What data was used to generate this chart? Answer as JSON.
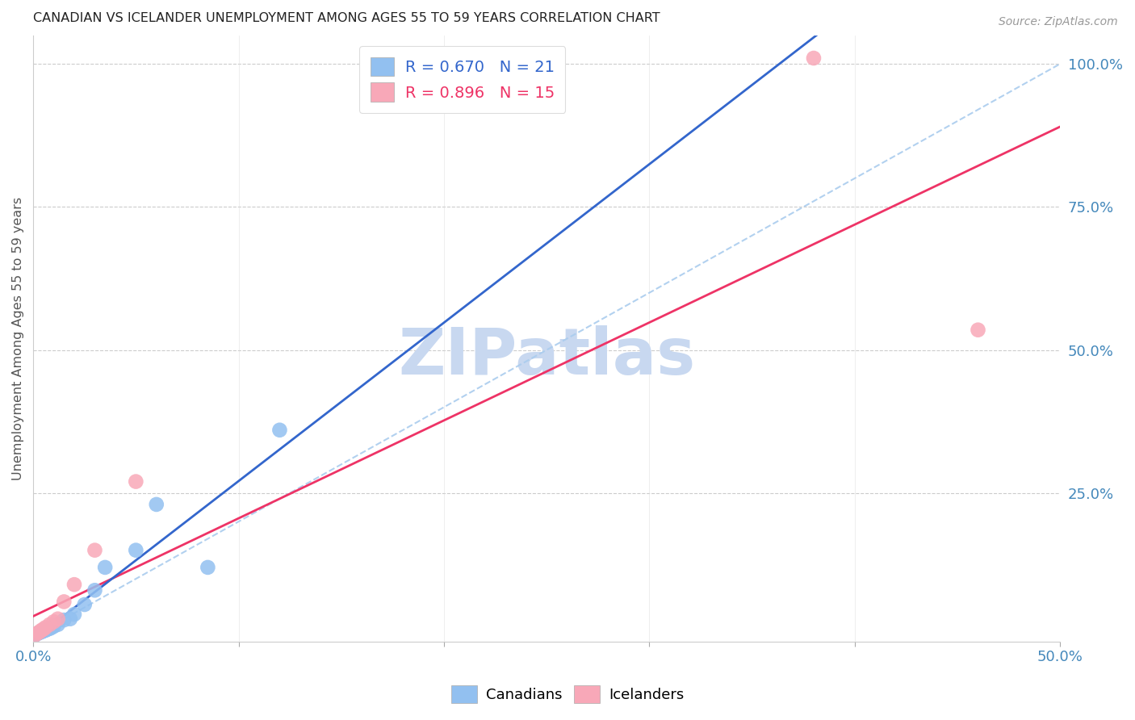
{
  "title": "CANADIAN VS ICELANDER UNEMPLOYMENT AMONG AGES 55 TO 59 YEARS CORRELATION CHART",
  "source": "Source: ZipAtlas.com",
  "ylabel": "Unemployment Among Ages 55 to 59 years",
  "xlim": [
    0.0,
    0.5
  ],
  "ylim": [
    -0.01,
    1.05
  ],
  "r_canadian": 0.67,
  "n_canadian": 21,
  "r_icelander": 0.896,
  "n_icelander": 15,
  "canadian_color": "#92c0f0",
  "icelander_color": "#f8a8b8",
  "canadian_line_color": "#3366cc",
  "icelander_line_color": "#ee3366",
  "diagonal_color": "#aaccee",
  "watermark_color": "#c8d8f0",
  "canadian_x": [
    0.001,
    0.002,
    0.003,
    0.004,
    0.005,
    0.006,
    0.007,
    0.008,
    0.009,
    0.01,
    0.012,
    0.015,
    0.018,
    0.02,
    0.025,
    0.03,
    0.035,
    0.05,
    0.06,
    0.085,
    0.12
  ],
  "canadian_y": [
    0.002,
    0.004,
    0.006,
    0.007,
    0.009,
    0.01,
    0.012,
    0.013,
    0.015,
    0.017,
    0.02,
    0.028,
    0.03,
    0.038,
    0.055,
    0.08,
    0.12,
    0.15,
    0.23,
    0.12,
    0.36
  ],
  "icelander_x": [
    0.001,
    0.002,
    0.003,
    0.004,
    0.005,
    0.006,
    0.008,
    0.01,
    0.012,
    0.015,
    0.02,
    0.03,
    0.05,
    0.38,
    0.46
  ],
  "icelander_y": [
    0.002,
    0.005,
    0.007,
    0.01,
    0.012,
    0.015,
    0.02,
    0.025,
    0.03,
    0.06,
    0.09,
    0.15,
    0.27,
    1.01,
    0.535
  ]
}
